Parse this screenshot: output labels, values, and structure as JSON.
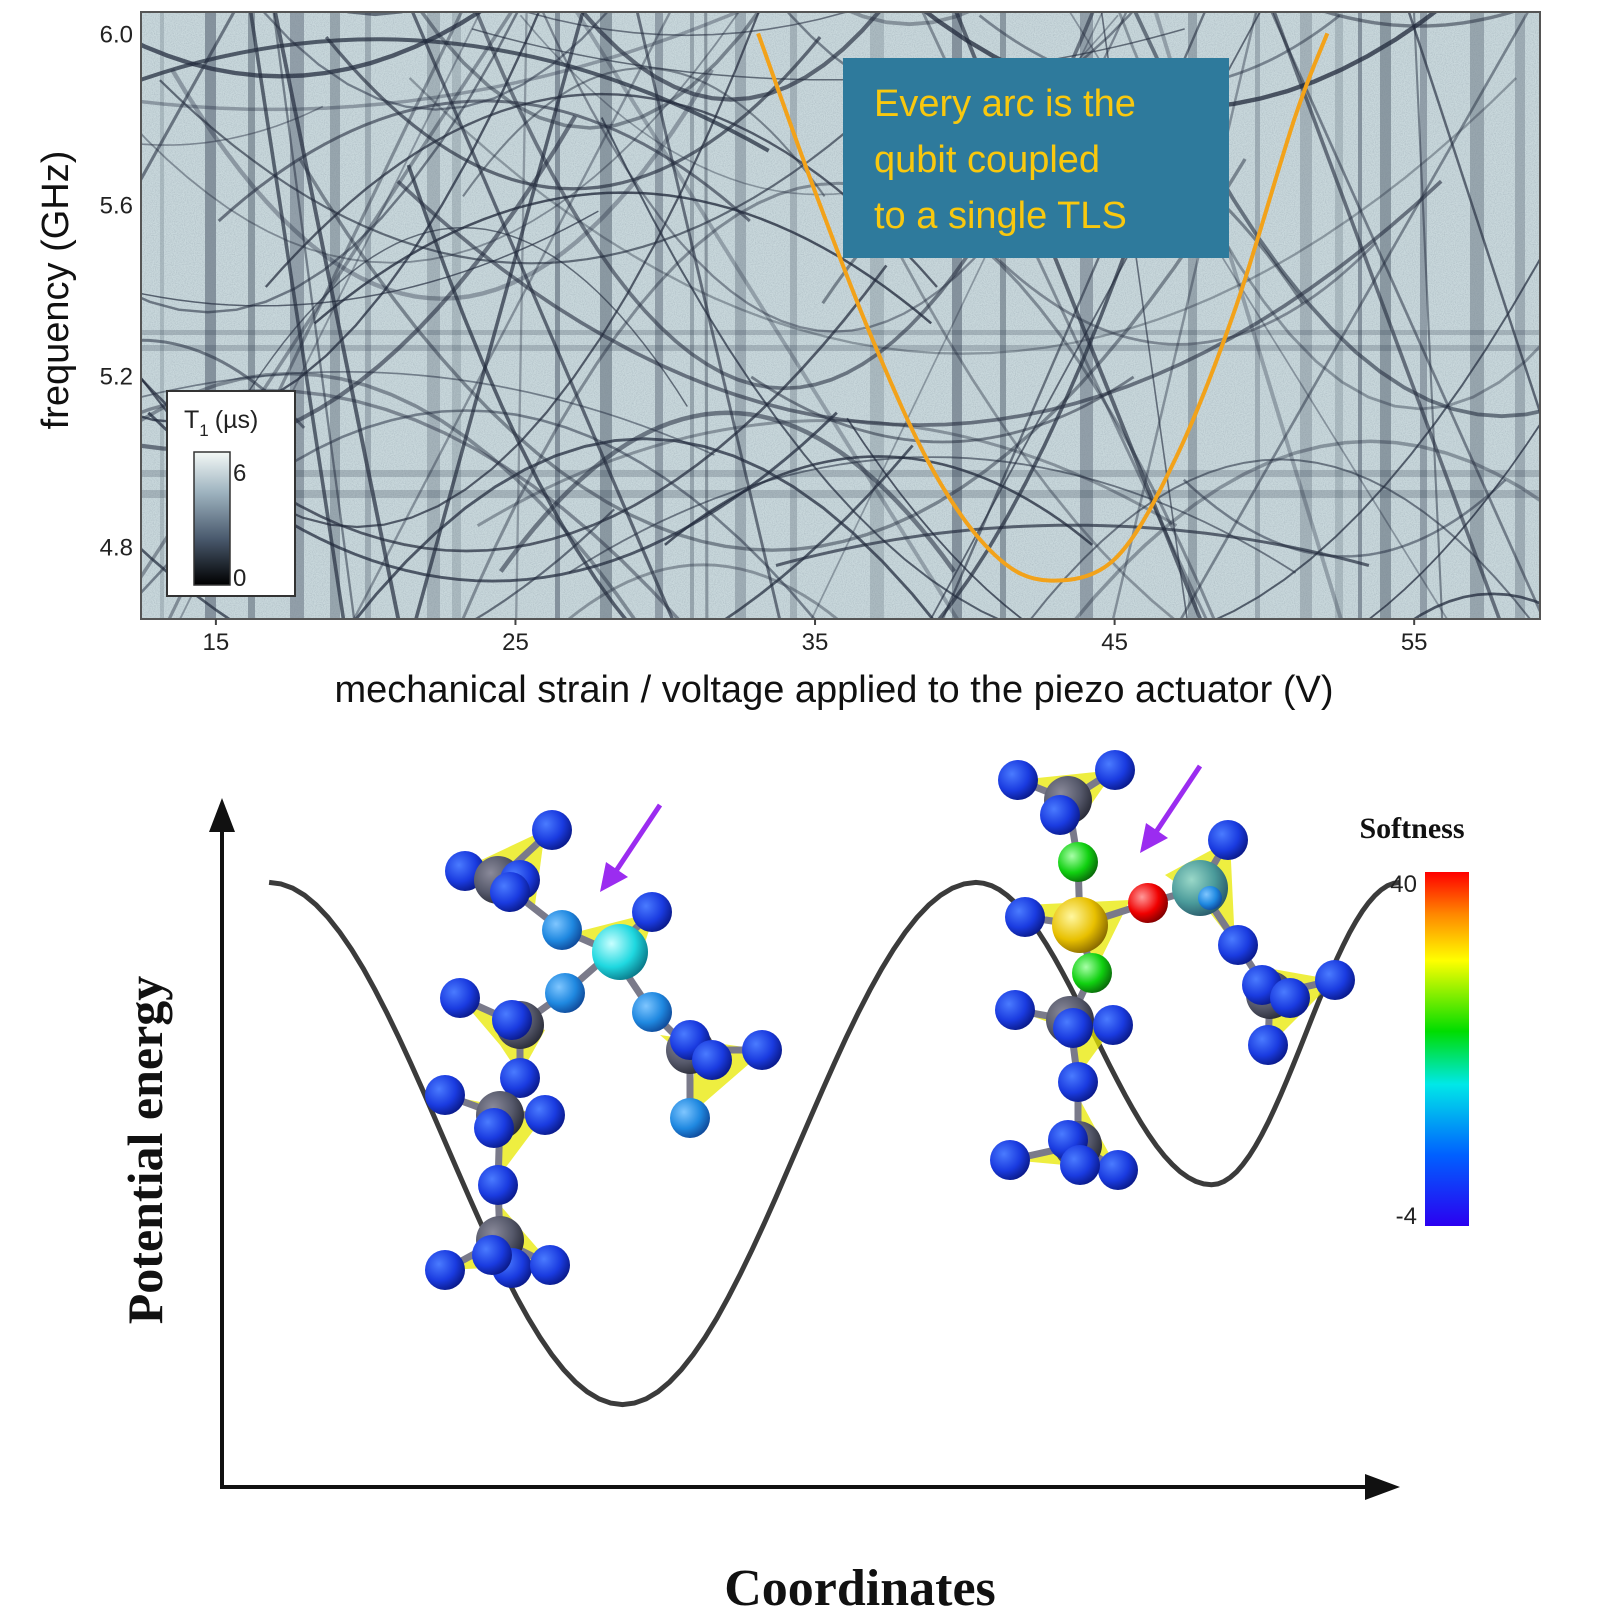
{
  "chart_data": [
    {
      "type": "heatmap",
      "xlabel": "mechanical strain / voltage applied to the piezo actuator (V)",
      "ylabel": "frequency (GHz)",
      "xlim": [
        12.5,
        59.2
      ],
      "ylim": [
        4.63,
        6.05
      ],
      "x_ticks": [
        15,
        25,
        35,
        45,
        55
      ],
      "y_ticks": [
        4.8,
        5.2,
        5.6,
        6.0
      ],
      "x_tick_labels": [
        "15",
        "25",
        "35",
        "45",
        "55"
      ],
      "y_tick_labels": [
        "4.8",
        "5.2",
        "5.6",
        "6.0"
      ],
      "colorbar": {
        "title_main": "T",
        "title_sub": "1",
        "title_unit": "(µs)",
        "ticks": [
          "6",
          "0"
        ],
        "range": [
          0,
          6
        ],
        "colors": [
          "#000000",
          "#4a5a6e",
          "#9fb4c0",
          "#f3f8f6"
        ]
      },
      "highlight_curve": {
        "color": "#f2a21a",
        "x": [
          33.1,
          35,
          37,
          39,
          41,
          42.8,
          45,
          47,
          49,
          51,
          52.1
        ],
        "y": [
          6.0,
          5.63,
          5.27,
          4.97,
          4.78,
          4.72,
          4.77,
          5.0,
          5.35,
          5.8,
          6.0
        ]
      },
      "annotation": {
        "lines": [
          "Every arc is the",
          "qubit coupled",
          "to a single TLS"
        ],
        "box_color": "#2e7a9c",
        "text_color": "#f9c80e"
      }
    },
    {
      "type": "line",
      "xlabel": "Coordinates",
      "ylabel": "Potential energy",
      "xlim": [
        0,
        100
      ],
      "ylim": [
        0,
        100
      ],
      "series": [
        {
          "color": "#3b3b3b",
          "x": [
            4,
            34,
            64,
            84,
            100
          ],
          "y": [
            88,
            12,
            88,
            44,
            88
          ]
        }
      ],
      "colorbar": {
        "title": "Softness",
        "max_label": "40",
        "min_label": "-4",
        "range": [
          -4,
          40
        ],
        "colors": [
          "#2b00f0",
          "#0060ff",
          "#00e8e8",
          "#00dd00",
          "#ffff00",
          "#ff8800",
          "#ff0000"
        ]
      },
      "arrow_color": "#9b2cf0"
    }
  ]
}
